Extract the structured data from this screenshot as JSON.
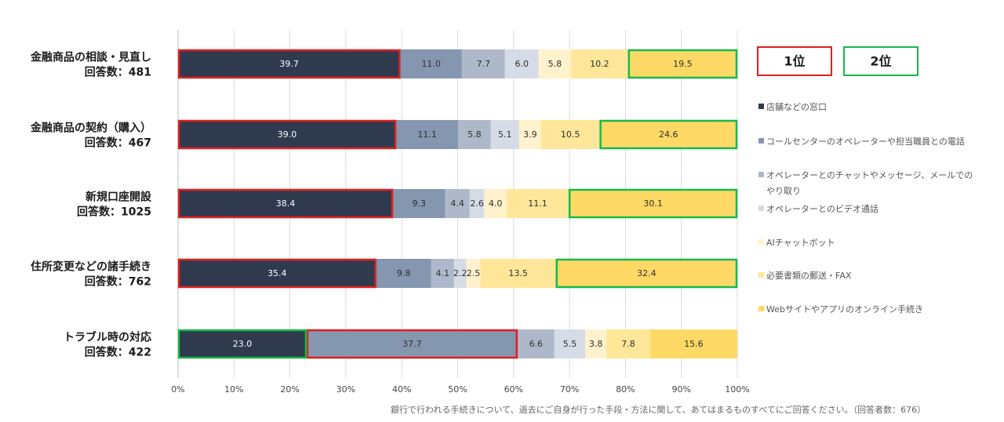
{
  "chart_data": {
    "type": "bar",
    "orientation": "horizontal",
    "stacked": true,
    "percent": true,
    "categories": [
      [
        "金融商品の相談・見直し",
        "回答数：481"
      ],
      [
        "金融商品の契約（購入）",
        "回答数：467"
      ],
      [
        "新規口座開設",
        "回答数：1025"
      ],
      [
        "住所変更などの諸手続き",
        "回答数：762"
      ],
      [
        "トラブル時の対応",
        "回答数：422"
      ]
    ],
    "series": [
      {
        "name": "店舗などの窓口",
        "color": "#2f3a4f",
        "values": [
          39.7,
          39.0,
          38.4,
          35.4,
          23.0
        ]
      },
      {
        "name": "コールセンターのオペレーターや担当職員との電話",
        "color": "#8496b0",
        "values": [
          11.0,
          11.1,
          9.3,
          9.8,
          37.7
        ]
      },
      {
        "name": "オペレーターとのチャットやメッセージ、メールでのやり取り",
        "color": "#adb9ca",
        "values": [
          7.7,
          5.8,
          4.4,
          4.1,
          6.6
        ]
      },
      {
        "name": "オペレーターとのビデオ通話",
        "color": "#d6dce5",
        "values": [
          6.0,
          5.1,
          2.6,
          2.2,
          5.5
        ]
      },
      {
        "name": "AIチャットボット",
        "color": "#fff2cc",
        "values": [
          5.8,
          3.9,
          4.0,
          2.5,
          3.8
        ]
      },
      {
        "name": "必要書類の郵送・FAX",
        "color": "#ffe699",
        "values": [
          10.2,
          10.5,
          11.1,
          13.5,
          7.8
        ]
      },
      {
        "name": "Webサイトやアプリのオンライン手続き",
        "color": "#ffd966",
        "values": [
          19.5,
          24.6,
          30.1,
          32.4,
          15.6
        ]
      }
    ],
    "value_labels": [
      [
        "39.7",
        "11.0",
        "7.7",
        "6.0",
        "5.8",
        "10.2",
        "19.5"
      ],
      [
        "39.0",
        "11.1",
        "5.8",
        "5.1",
        "3.9",
        "10.5",
        "24.6"
      ],
      [
        "38.4",
        "9.3",
        "4.4",
        "2.6",
        "4.0",
        "11.1",
        "30.1"
      ],
      [
        "35.4",
        "9.8",
        "4.1",
        "2.2",
        "2.5",
        "13.5",
        "32.4"
      ],
      [
        "23.0",
        "37.7",
        "6.6",
        "5.5",
        "3.8",
        "7.8",
        "15.6"
      ]
    ],
    "x_ticks": [
      "0%",
      "10%",
      "20%",
      "30%",
      "40%",
      "50%",
      "60%",
      "70%",
      "80%",
      "90%",
      "100%"
    ],
    "xlim": [
      0,
      100
    ],
    "highlights": [
      {
        "category": 0,
        "series": 0,
        "rank": 1
      },
      {
        "category": 0,
        "series": 6,
        "rank": 2
      },
      {
        "category": 1,
        "series": 0,
        "rank": 1
      },
      {
        "category": 1,
        "series": 6,
        "rank": 2
      },
      {
        "category": 2,
        "series": 0,
        "rank": 1
      },
      {
        "category": 2,
        "series": 6,
        "rank": 2
      },
      {
        "category": 3,
        "series": 0,
        "rank": 1
      },
      {
        "category": 3,
        "series": 6,
        "rank": 2
      },
      {
        "category": 4,
        "series": 1,
        "rank": 1
      },
      {
        "category": 4,
        "series": 0,
        "rank": 2
      }
    ],
    "rank_legend": [
      {
        "label": "1位",
        "color": "#e0201e"
      },
      {
        "label": "2位",
        "color": "#19b84a"
      }
    ],
    "legend": [
      [
        "店舗などの窓口"
      ],
      [
        "コールセンターのオペレーターや担当職員との電話"
      ],
      [
        "オペレーターとのチャットやメッセージ、メールでの",
        "やり取り"
      ],
      [
        "オペレーターとのビデオ通話"
      ],
      [
        "AIチャットボット"
      ],
      [
        "必要書類の郵送・FAX"
      ],
      [
        "Webサイトやアプリのオンライン手続き"
      ]
    ],
    "legend_position": "right",
    "grid": true,
    "footnote": "銀行で行われる手続きについて、過去にご自身が行った手段・方法に関して、あてはまるものすべてにご回答ください。（回答者数：676）"
  }
}
